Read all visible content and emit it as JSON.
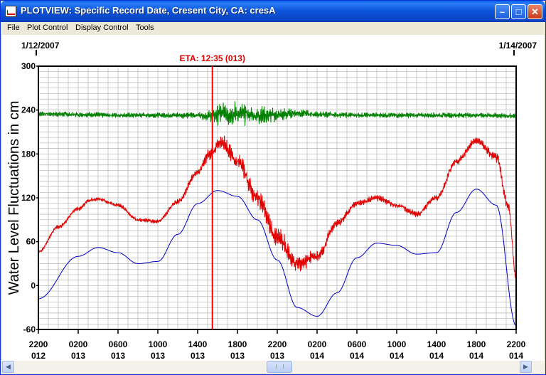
{
  "window": {
    "title": "PLOTVIEW: Specific Record Date, Cresent City, CA: cresA",
    "minimize_glyph": "–",
    "maximize_glyph": "□",
    "close_glyph": "✕"
  },
  "menu": {
    "items": [
      {
        "label": "File"
      },
      {
        "label": "Plot Control"
      },
      {
        "label": "Display Control"
      },
      {
        "label": "Tools"
      }
    ]
  },
  "plot": {
    "date_start": "1/12/2007",
    "date_end": "1/14/2007",
    "eta_label": "ETA: 12:35 (013)",
    "eta_index": 4.37,
    "ylabel": "Water Level Fluctuations in cm",
    "y_ticks": [
      "300",
      "240",
      "180",
      "120",
      "60",
      "0",
      "-60"
    ],
    "y_values": [
      300,
      240,
      180,
      120,
      60,
      0,
      -60
    ],
    "ylim": [
      -60,
      300
    ],
    "x_ticks": [
      {
        "time": "2200",
        "day": "012"
      },
      {
        "time": "0200",
        "day": "013"
      },
      {
        "time": "0600",
        "day": "013"
      },
      {
        "time": "1000",
        "day": "013"
      },
      {
        "time": "1400",
        "day": "013"
      },
      {
        "time": "1800",
        "day": "013"
      },
      {
        "time": "2200",
        "day": "013"
      },
      {
        "time": "0200",
        "day": "014"
      },
      {
        "time": "0600",
        "day": "014"
      },
      {
        "time": "1000",
        "day": "014"
      },
      {
        "time": "1400",
        "day": "014"
      },
      {
        "time": "1800",
        "day": "014"
      },
      {
        "time": "2200",
        "day": "014"
      }
    ],
    "colors": {
      "green": "#008000",
      "red": "#e00000",
      "blue": "#0000cc",
      "eta": "#ff0000",
      "grid": "#b4b4b4"
    }
  },
  "chart_data": {
    "type": "line",
    "x_unit": "tick index (4-hour steps from 2200 day 012)",
    "ylabel": "Water Level Fluctuations in cm",
    "ylim": [
      -60,
      300
    ],
    "series": [
      {
        "color": "green",
        "x": [
          0,
          1,
          2,
          3,
          4,
          4.3,
          4.6,
          5,
          5.5,
          6,
          6.5,
          7,
          8,
          9,
          10,
          11,
          12
        ],
        "values": [
          235,
          234,
          233,
          233,
          233,
          232,
          235,
          235,
          233,
          233,
          236,
          234,
          233,
          233,
          233,
          233,
          232
        ],
        "noise_amp": [
          4,
          4,
          4,
          4,
          5,
          9,
          18,
          18,
          14,
          10,
          7,
          5,
          4,
          4,
          4,
          4,
          4
        ]
      },
      {
        "color": "red",
        "x": [
          0,
          0.5,
          1,
          1.3,
          1.5,
          2,
          2.5,
          3,
          3.5,
          4,
          4.3,
          4.6,
          5,
          5.5,
          6,
          6.5,
          7,
          7.5,
          8,
          8.5,
          9,
          9.5,
          10,
          10.5,
          11,
          11.5,
          11.8,
          12
        ],
        "values": [
          46,
          80,
          105,
          117,
          118,
          110,
          90,
          88,
          115,
          155,
          180,
          195,
          170,
          120,
          65,
          30,
          40,
          85,
          112,
          120,
          110,
          98,
          120,
          170,
          198,
          175,
          110,
          10
        ],
        "noise_amp": [
          2,
          3,
          3,
          3,
          3,
          3,
          3,
          3,
          4,
          5,
          10,
          14,
          12,
          14,
          16,
          14,
          10,
          6,
          5,
          5,
          5,
          5,
          5,
          6,
          6,
          8,
          8,
          6
        ]
      },
      {
        "color": "blue",
        "x": [
          0,
          1,
          1.5,
          2,
          2.5,
          3,
          3.5,
          4,
          4.5,
          5,
          5.5,
          6,
          6.5,
          7,
          7.5,
          8,
          8.5,
          9,
          9.5,
          10,
          10.5,
          11,
          11.5,
          12
        ],
        "values": [
          -18,
          40,
          52,
          45,
          30,
          33,
          70,
          112,
          130,
          122,
          90,
          35,
          -30,
          -42,
          -10,
          38,
          58,
          55,
          43,
          45,
          100,
          132,
          110,
          -55
        ]
      }
    ]
  }
}
